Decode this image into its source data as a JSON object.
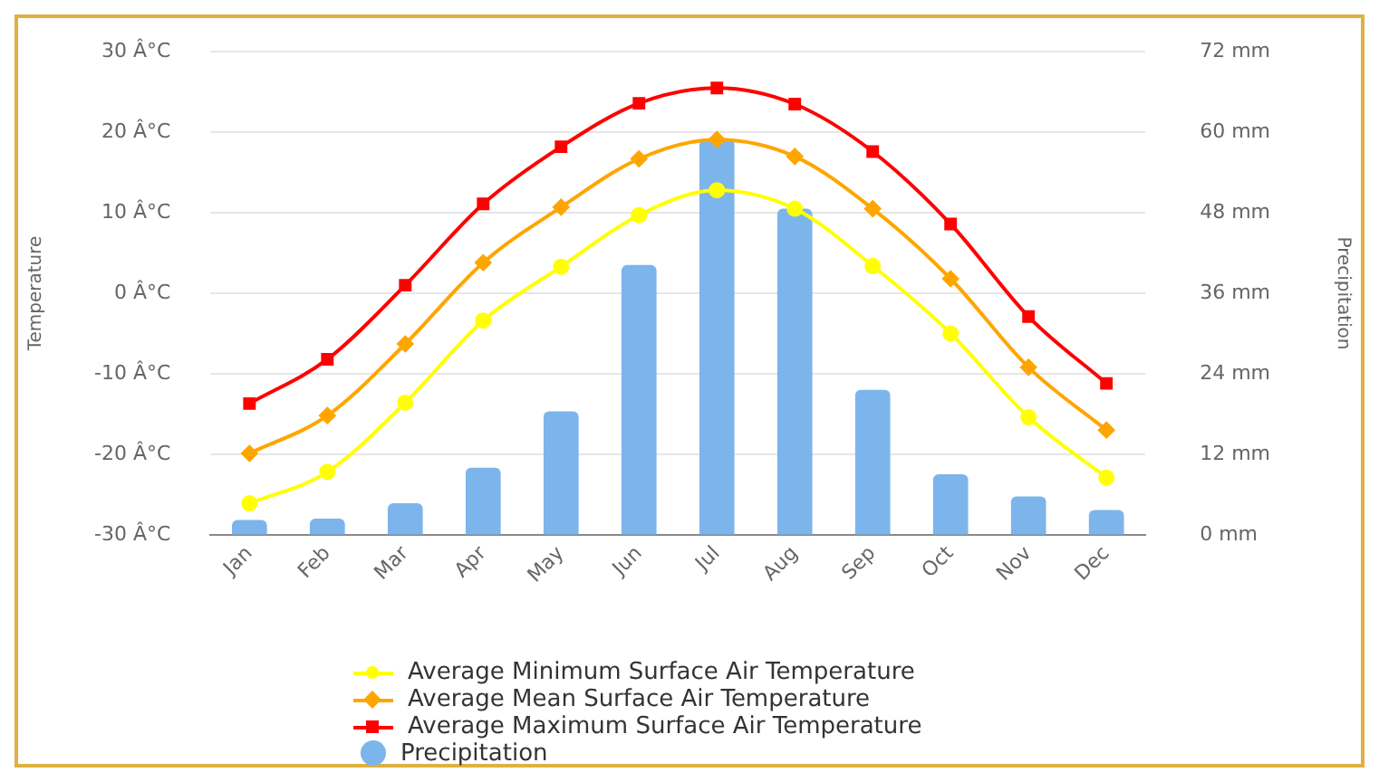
{
  "chart_data": {
    "type": "line",
    "categories": [
      "Jan",
      "Feb",
      "Mar",
      "Apr",
      "May",
      "Jun",
      "Jul",
      "Aug",
      "Sep",
      "Oct",
      "Nov",
      "Dec"
    ],
    "ylabel": "Temperature",
    "y2label": "Precipitation",
    "ylim": [
      -30,
      30
    ],
    "yticks": [
      {
        "value": -30,
        "label": "-30 Â°C"
      },
      {
        "value": -20,
        "label": "-20 Â°C"
      },
      {
        "value": -10,
        "label": "-10 Â°C"
      },
      {
        "value": 0,
        "label": "0 Â°C"
      },
      {
        "value": 10,
        "label": "10 Â°C"
      },
      {
        "value": 20,
        "label": "20 Â°C"
      },
      {
        "value": 30,
        "label": "30 Â°C"
      }
    ],
    "y2lim": [
      0,
      72
    ],
    "y2ticks": [
      {
        "value": 0,
        "label": "0 mm"
      },
      {
        "value": 12,
        "label": "12 mm"
      },
      {
        "value": 24,
        "label": "24 mm"
      },
      {
        "value": 36,
        "label": "36 mm"
      },
      {
        "value": 48,
        "label": "48 mm"
      },
      {
        "value": 60,
        "label": "60 mm"
      },
      {
        "value": 72,
        "label": "72 mm"
      }
    ],
    "grid": "y",
    "legend": "bottom",
    "series": [
      {
        "name": "Average Minimum Surface Air Temperature",
        "color": "#ffff00",
        "marker": "circle",
        "values": [
          -26.1,
          -22.2,
          -13.6,
          -3.4,
          3.3,
          9.7,
          12.8,
          10.5,
          3.4,
          -5.0,
          -15.4,
          -22.9
        ]
      },
      {
        "name": "Average Mean Surface Air Temperature",
        "color": "#ffa500",
        "marker": "diamond",
        "values": [
          -19.9,
          -15.2,
          -6.3,
          3.8,
          10.7,
          16.7,
          19.1,
          17.0,
          10.5,
          1.8,
          -9.2,
          -17.0
        ]
      },
      {
        "name": "Average Maximum Surface Air Temperature",
        "color": "#ff0000",
        "marker": "square",
        "values": [
          -13.7,
          -8.2,
          1.0,
          11.1,
          18.2,
          23.6,
          25.5,
          23.5,
          17.6,
          8.6,
          -2.9,
          -11.2
        ]
      },
      {
        "name": "Precipitation",
        "type": "bar",
        "axis": "y2",
        "color": "#7cb5ec",
        "values": [
          2.2,
          2.4,
          4.7,
          10.0,
          18.4,
          40.2,
          59.0,
          48.6,
          21.6,
          9.0,
          5.7,
          3.7
        ]
      }
    ]
  }
}
